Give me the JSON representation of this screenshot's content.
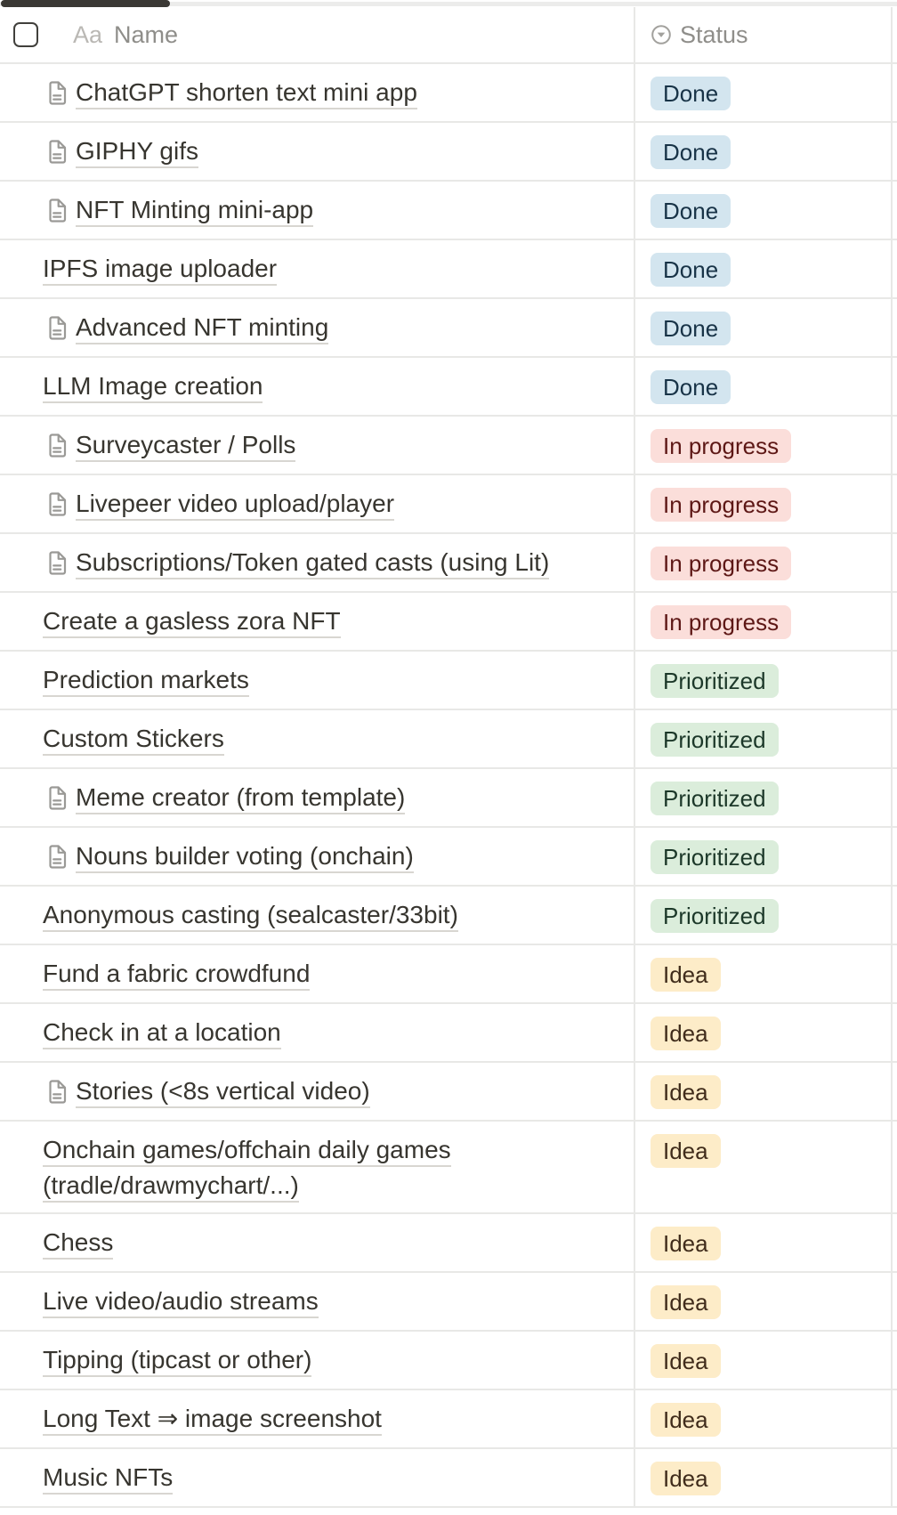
{
  "header": {
    "name_column": {
      "type_icon": "Aa",
      "label": "Name"
    },
    "status_column": {
      "icon": "circle-dropdown-icon",
      "label": "Status"
    }
  },
  "statuses": {
    "Done": {
      "bg": "#d3e5ef",
      "fg": "#183347"
    },
    "In progress": {
      "bg": "#fbdeda",
      "fg": "#5d1715"
    },
    "Prioritized": {
      "bg": "#dbeddb",
      "fg": "#1c3829"
    },
    "Idea": {
      "bg": "#fdecc8",
      "fg": "#402c1b"
    }
  },
  "rows": [
    {
      "name": "ChatGPT shorten text mini app",
      "has_page_icon": true,
      "status": "Done"
    },
    {
      "name": "GIPHY gifs",
      "has_page_icon": true,
      "status": "Done"
    },
    {
      "name": "NFT Minting mini-app",
      "has_page_icon": true,
      "status": "Done"
    },
    {
      "name": "IPFS image uploader",
      "has_page_icon": false,
      "status": "Done"
    },
    {
      "name": "Advanced NFT minting",
      "has_page_icon": true,
      "status": "Done"
    },
    {
      "name": "LLM Image creation",
      "has_page_icon": false,
      "status": "Done"
    },
    {
      "name": "Surveycaster / Polls",
      "has_page_icon": true,
      "status": "In progress"
    },
    {
      "name": "Livepeer video upload/player",
      "has_page_icon": true,
      "status": "In progress"
    },
    {
      "name": "Subscriptions/Token gated casts (using Lit)",
      "has_page_icon": true,
      "status": "In progress"
    },
    {
      "name": "Create a gasless zora NFT",
      "has_page_icon": false,
      "status": "In progress"
    },
    {
      "name": "Prediction markets",
      "has_page_icon": false,
      "status": "Prioritized"
    },
    {
      "name": "Custom Stickers",
      "has_page_icon": false,
      "status": "Prioritized"
    },
    {
      "name": "Meme creator (from template)",
      "has_page_icon": true,
      "status": "Prioritized"
    },
    {
      "name": "Nouns builder voting (onchain)",
      "has_page_icon": true,
      "status": "Prioritized"
    },
    {
      "name": "Anonymous casting (sealcaster/33bit)",
      "has_page_icon": false,
      "status": "Prioritized"
    },
    {
      "name": "Fund a fabric crowdfund",
      "has_page_icon": false,
      "status": "Idea"
    },
    {
      "name": "Check in at a location",
      "has_page_icon": false,
      "status": "Idea"
    },
    {
      "name": "Stories (<8s vertical video)",
      "has_page_icon": true,
      "status": "Idea"
    },
    {
      "name": "Onchain games/offchain daily games\n(tradle/drawmychart/...)",
      "has_page_icon": false,
      "status": "Idea"
    },
    {
      "name": "Chess",
      "has_page_icon": false,
      "status": "Idea"
    },
    {
      "name": "Live video/audio streams",
      "has_page_icon": false,
      "status": "Idea"
    },
    {
      "name": "Tipping (tipcast or other)",
      "has_page_icon": false,
      "status": "Idea"
    },
    {
      "name": "Long Text ⇒ image screenshot",
      "has_page_icon": false,
      "status": "Idea"
    },
    {
      "name": "Music NFTs",
      "has_page_icon": false,
      "status": "Idea"
    }
  ]
}
